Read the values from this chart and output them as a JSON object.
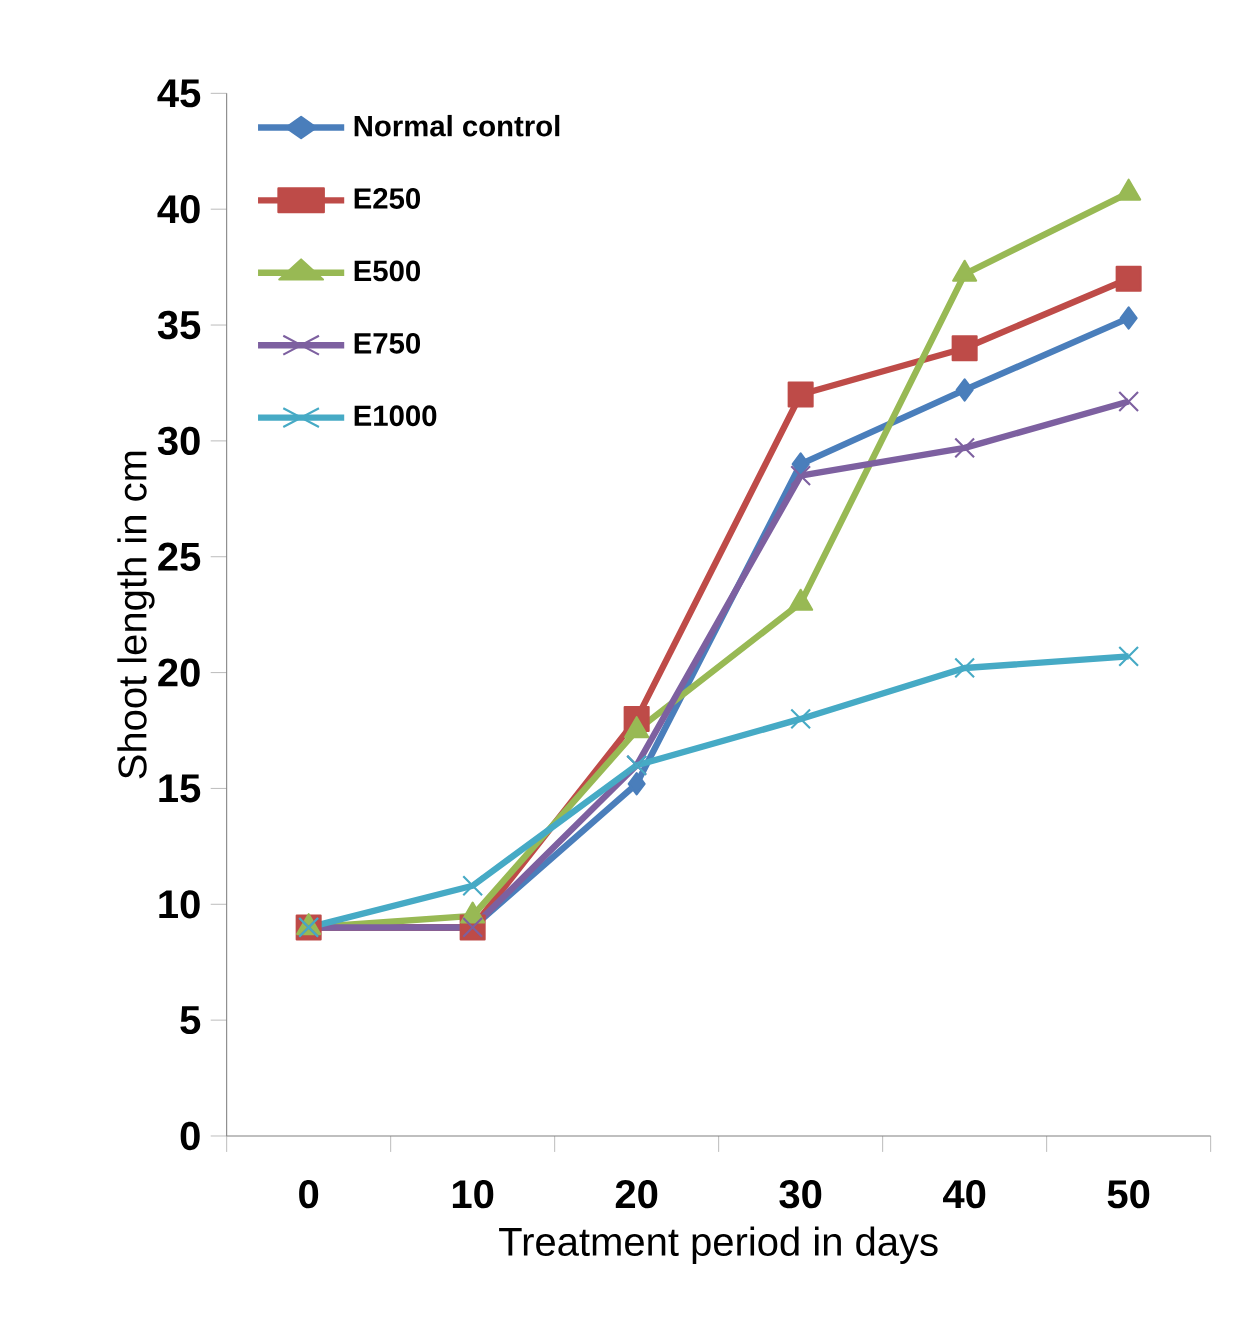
{
  "chart_data": {
    "type": "line",
    "xlabel": "Treatment period in days",
    "ylabel": "Shoot length in cm",
    "categories": [
      "0",
      "10",
      "20",
      "30",
      "40",
      "50"
    ],
    "ylim": [
      0,
      45
    ],
    "yticks": [
      0,
      5,
      10,
      15,
      20,
      25,
      30,
      35,
      40,
      45
    ],
    "grid": false,
    "legend": "top left",
    "series": [
      {
        "name": "Normal control",
        "color": "#4a7ebb",
        "marker": "diamond",
        "values": [
          9,
          9,
          15.2,
          29,
          32.2,
          35.3
        ]
      },
      {
        "name": "E250",
        "color": "#be4b48",
        "marker": "square",
        "values": [
          9,
          9,
          18,
          32,
          34,
          37
        ]
      },
      {
        "name": "E500",
        "color": "#98b954",
        "marker": "triangle",
        "values": [
          9,
          9.5,
          17.5,
          23,
          37.2,
          40.7
        ]
      },
      {
        "name": "E750",
        "color": "#7d60a0",
        "marker": "cross",
        "values": [
          9,
          9,
          16,
          28.5,
          29.7,
          31.7
        ]
      },
      {
        "name": "E1000",
        "color": "#46aac5",
        "marker": "cross",
        "values": [
          9,
          10.8,
          16,
          18,
          20.2,
          20.7
        ]
      }
    ]
  }
}
